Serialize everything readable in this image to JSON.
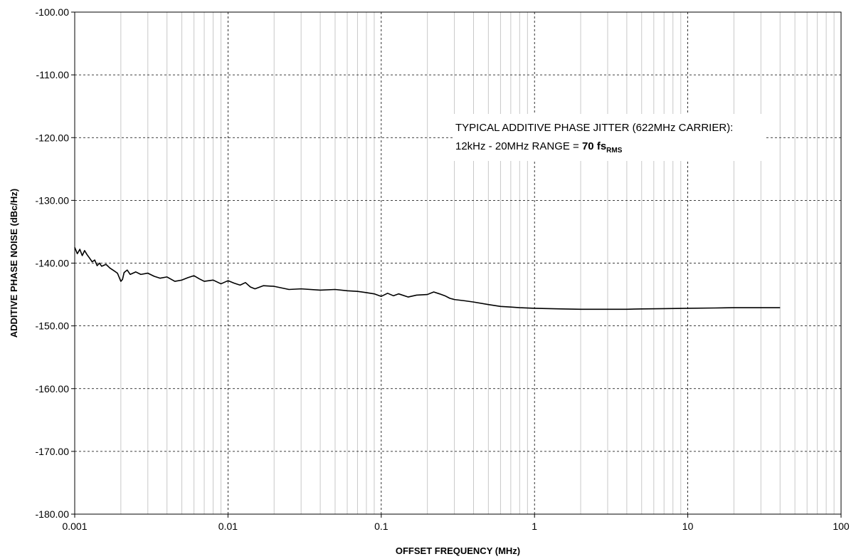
{
  "chart_data": {
    "type": "line",
    "title": "",
    "xlabel": "OFFSET FREQUENCY (MHz)",
    "ylabel": "ADDITIVE PHASE NOISE (dBc/Hz)",
    "x_scale": "log",
    "xlim": [
      0.001,
      100
    ],
    "ylim": [
      -180,
      -100
    ],
    "x_ticks": [
      0.001,
      0.01,
      0.1,
      1,
      10,
      100
    ],
    "x_tick_labels": [
      "0.001",
      "0.01",
      "0.1",
      "1",
      "10",
      "100"
    ],
    "y_ticks": [
      -100,
      -110,
      -120,
      -130,
      -140,
      -150,
      -160,
      -170,
      -180
    ],
    "y_tick_labels": [
      "-100.00",
      "-110.00",
      "-120.00",
      "-130.00",
      "-140.00",
      "-150.00",
      "-160.00",
      "-170.00",
      "-180.00"
    ],
    "grid": true,
    "legend": "none",
    "line_color": "#000000",
    "annotation": {
      "line1": "TYPICAL ADDITIVE PHASE JITTER (622MHz CARRIER):",
      "line2_prefix": "12kHz - 20MHz RANGE = ",
      "value": "70 fs",
      "subscript": "RMS"
    },
    "series": [
      {
        "x": [
          0.001,
          0.00104,
          0.00108,
          0.00112,
          0.00116,
          0.0012,
          0.00125,
          0.0013,
          0.00135,
          0.0014,
          0.00145,
          0.0015,
          0.0016,
          0.0017,
          0.0018,
          0.0019,
          0.002,
          0.00205,
          0.0021,
          0.0022,
          0.0023,
          0.0025,
          0.0027,
          0.003,
          0.0033,
          0.0036,
          0.004,
          0.0045,
          0.005,
          0.0055,
          0.006,
          0.0065,
          0.007,
          0.008,
          0.009,
          0.01,
          0.011,
          0.012,
          0.013,
          0.014,
          0.015,
          0.017,
          0.02,
          0.025,
          0.03,
          0.04,
          0.05,
          0.06,
          0.07,
          0.08,
          0.09,
          0.1,
          0.11,
          0.12,
          0.13,
          0.15,
          0.17,
          0.2,
          0.22,
          0.24,
          0.26,
          0.28,
          0.3,
          0.35,
          0.4,
          0.5,
          0.6,
          0.7,
          0.8,
          1,
          1.5,
          2,
          3,
          4,
          5,
          7,
          10,
          15,
          20,
          30,
          40
        ],
        "y": [
          -137.5,
          -138.5,
          -137.8,
          -138.8,
          -138.0,
          -138.6,
          -139.2,
          -139.8,
          -139.5,
          -140.4,
          -140.0,
          -140.5,
          -140.2,
          -140.8,
          -141.2,
          -141.6,
          -142.9,
          -142.6,
          -141.5,
          -141.1,
          -141.8,
          -141.4,
          -141.8,
          -141.6,
          -142.1,
          -142.4,
          -142.2,
          -142.9,
          -142.7,
          -142.3,
          -142.0,
          -142.5,
          -142.9,
          -142.7,
          -143.3,
          -142.8,
          -143.2,
          -143.5,
          -143.1,
          -143.8,
          -144.1,
          -143.6,
          -143.7,
          -144.2,
          -144.1,
          -144.3,
          -144.2,
          -144.4,
          -144.5,
          -144.7,
          -144.9,
          -145.3,
          -144.8,
          -145.2,
          -144.9,
          -145.4,
          -145.1,
          -145.0,
          -144.6,
          -144.9,
          -145.2,
          -145.6,
          -145.8,
          -146.0,
          -146.2,
          -146.6,
          -146.9,
          -147.0,
          -147.1,
          -147.2,
          -147.3,
          -147.35,
          -147.35,
          -147.35,
          -147.3,
          -147.25,
          -147.2,
          -147.15,
          -147.1,
          -147.1,
          -147.1
        ]
      }
    ]
  }
}
